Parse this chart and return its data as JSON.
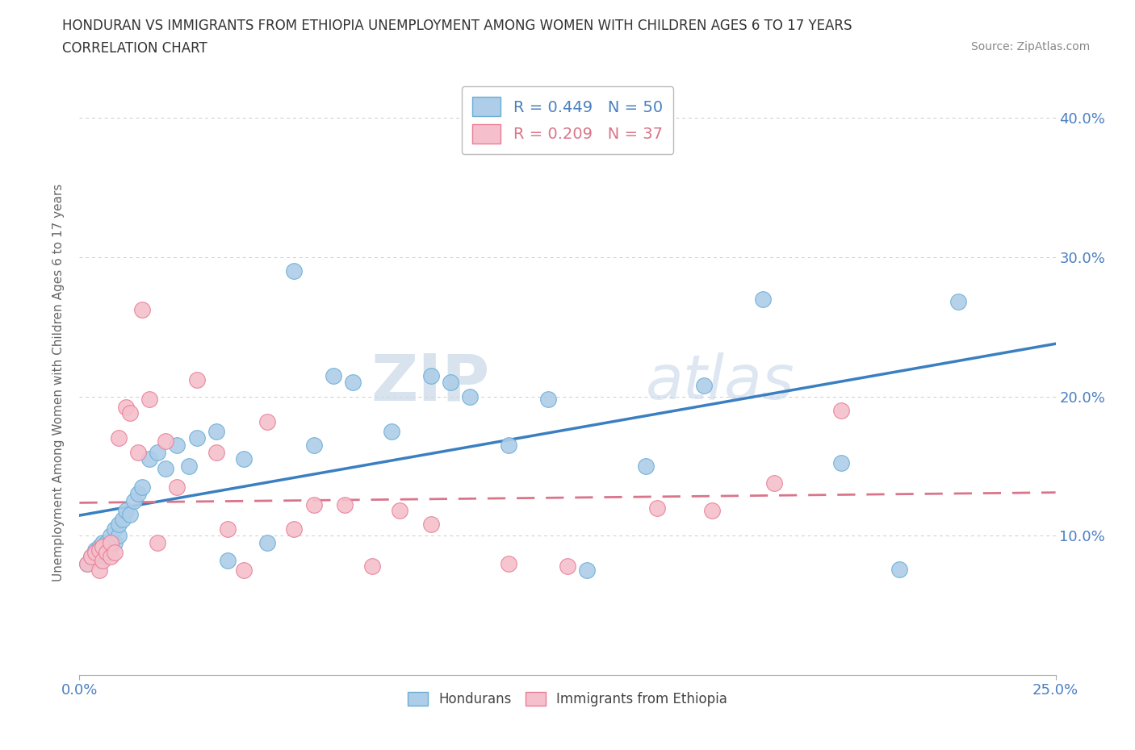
{
  "title_line1": "HONDURAN VS IMMIGRANTS FROM ETHIOPIA UNEMPLOYMENT AMONG WOMEN WITH CHILDREN AGES 6 TO 17 YEARS",
  "title_line2": "CORRELATION CHART",
  "source_text": "Source: ZipAtlas.com",
  "ylabel": "Unemployment Among Women with Children Ages 6 to 17 years",
  "xmin": 0.0,
  "xmax": 0.25,
  "ymin": 0.0,
  "ymax": 0.42,
  "ytick_labels": [
    "10.0%",
    "20.0%",
    "30.0%",
    "40.0%"
  ],
  "ytick_values": [
    0.1,
    0.2,
    0.3,
    0.4
  ],
  "xtick_labels": [
    "0.0%",
    "25.0%"
  ],
  "xtick_values": [
    0.0,
    0.25
  ],
  "hondurans_color": "#aecde8",
  "ethiopia_color": "#f5c0cb",
  "hondurans_edge_color": "#6aaed6",
  "ethiopia_edge_color": "#e87d96",
  "hondurans_line_color": "#3a7fc1",
  "ethiopia_line_color": "#d9758a",
  "label_color": "#4a7fc1",
  "legend_r1": "R = 0.449",
  "legend_n1": "N = 50",
  "legend_r2": "R = 0.209",
  "legend_n2": "N = 37",
  "watermark": "ZIPatlas",
  "hondurans_x": [
    0.002,
    0.003,
    0.004,
    0.004,
    0.005,
    0.005,
    0.006,
    0.006,
    0.007,
    0.007,
    0.007,
    0.008,
    0.008,
    0.009,
    0.009,
    0.01,
    0.01,
    0.011,
    0.012,
    0.013,
    0.014,
    0.015,
    0.016,
    0.018,
    0.02,
    0.022,
    0.025,
    0.028,
    0.03,
    0.035,
    0.038,
    0.042,
    0.048,
    0.055,
    0.06,
    0.065,
    0.07,
    0.08,
    0.09,
    0.095,
    0.1,
    0.11,
    0.12,
    0.13,
    0.145,
    0.16,
    0.175,
    0.195,
    0.21,
    0.225
  ],
  "hondurans_y": [
    0.08,
    0.085,
    0.088,
    0.09,
    0.082,
    0.092,
    0.085,
    0.095,
    0.088,
    0.09,
    0.095,
    0.092,
    0.1,
    0.095,
    0.105,
    0.1,
    0.108,
    0.112,
    0.118,
    0.115,
    0.125,
    0.13,
    0.135,
    0.155,
    0.16,
    0.148,
    0.165,
    0.15,
    0.17,
    0.175,
    0.082,
    0.155,
    0.095,
    0.29,
    0.165,
    0.215,
    0.21,
    0.175,
    0.215,
    0.21,
    0.2,
    0.165,
    0.198,
    0.075,
    0.15,
    0.208,
    0.27,
    0.152,
    0.076,
    0.268
  ],
  "ethiopia_x": [
    0.002,
    0.003,
    0.004,
    0.005,
    0.005,
    0.006,
    0.006,
    0.007,
    0.008,
    0.008,
    0.009,
    0.01,
    0.012,
    0.013,
    0.015,
    0.016,
    0.018,
    0.02,
    0.022,
    0.025,
    0.03,
    0.035,
    0.038,
    0.042,
    0.048,
    0.055,
    0.06,
    0.068,
    0.075,
    0.082,
    0.09,
    0.11,
    0.125,
    0.148,
    0.162,
    0.178,
    0.195
  ],
  "ethiopia_y": [
    0.08,
    0.085,
    0.088,
    0.075,
    0.09,
    0.082,
    0.092,
    0.088,
    0.085,
    0.095,
    0.088,
    0.17,
    0.192,
    0.188,
    0.16,
    0.262,
    0.198,
    0.095,
    0.168,
    0.135,
    0.212,
    0.16,
    0.105,
    0.075,
    0.182,
    0.105,
    0.122,
    0.122,
    0.078,
    0.118,
    0.108,
    0.08,
    0.078,
    0.12,
    0.118,
    0.138,
    0.19
  ]
}
